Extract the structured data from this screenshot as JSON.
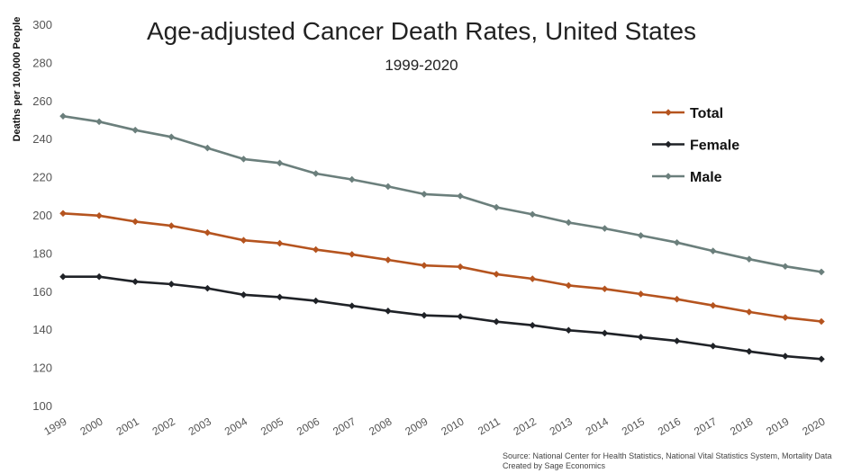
{
  "chart_data": {
    "type": "line",
    "title": "Age-adjusted Cancer Death Rates, United States",
    "subtitle": "1999-2020",
    "ylabel": "Deaths per 100,000 People",
    "xlabel": "",
    "ylim": [
      100,
      300
    ],
    "yticks": [
      "100",
      "120",
      "140",
      "160",
      "180",
      "200",
      "220",
      "240",
      "260",
      "280",
      "300"
    ],
    "grid": false,
    "legend_position": "top-right",
    "x": [
      "1999",
      "2000",
      "2001",
      "2002",
      "2003",
      "2004",
      "2005",
      "2006",
      "2007",
      "2008",
      "2009",
      "2010",
      "2011",
      "2012",
      "2013",
      "2014",
      "2015",
      "2016",
      "2017",
      "2018",
      "2019",
      "2020"
    ],
    "series": [
      {
        "name": "Total",
        "color": "#b5541f",
        "values": [
          200.8,
          199.6,
          196.5,
          194.3,
          190.7,
          186.7,
          185.1,
          181.8,
          179.3,
          176.4,
          173.5,
          172.8,
          168.9,
          166.5,
          163.0,
          161.2,
          158.5,
          155.8,
          152.5,
          149.1,
          146.2,
          144.1
        ]
      },
      {
        "name": "Female",
        "color": "#1f2227",
        "values": [
          167.6,
          167.6,
          165.0,
          163.7,
          161.5,
          158.1,
          156.9,
          154.9,
          152.3,
          149.6,
          147.3,
          146.7,
          144.0,
          142.1,
          139.5,
          138.0,
          135.9,
          133.9,
          131.2,
          128.4,
          125.9,
          124.4
        ]
      },
      {
        "name": "Male",
        "color": "#6b7f7c",
        "values": [
          251.8,
          248.9,
          244.5,
          240.9,
          235.1,
          229.3,
          227.2,
          221.7,
          218.6,
          214.9,
          210.9,
          209.9,
          204.0,
          200.3,
          196.0,
          192.9,
          189.2,
          185.5,
          181.1,
          176.8,
          173.0,
          170.1
        ]
      }
    ]
  },
  "source": {
    "line1": "Source: National Center for Health Statistics, National Vital Statistics System, Mortality Data",
    "line2": "Created by Sage Economics"
  }
}
